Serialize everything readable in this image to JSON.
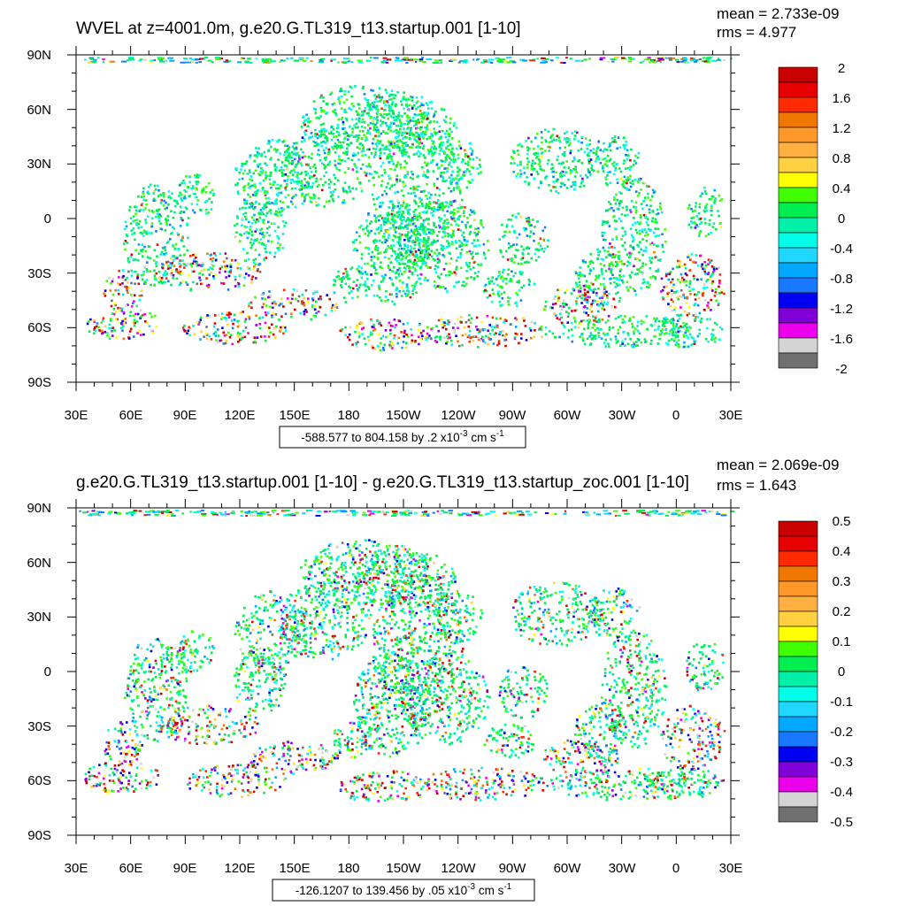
{
  "colors": [
    "#c80000",
    "#e60000",
    "#ff2a00",
    "#f07800",
    "#ff9828",
    "#ffb040",
    "#ffd040",
    "#ffff00",
    "#40ff00",
    "#00ee50",
    "#00f0a8",
    "#00ffe8",
    "#20d8ff",
    "#00a8ff",
    "#1878ff",
    "#0000f0",
    "#8000d8",
    "#ec00ec",
    "#d4d4d4",
    "#707070"
  ],
  "panels": [
    {
      "title": "WVEL at z=4001.0m, g.e20.G.TL319_t13.startup.001 [1-10]",
      "mean": "mean = 2.733e-09",
      "rms": "rms = 4.977",
      "range_text": "-588.577 to 804.158 by .2 x10",
      "range_exp": "-3",
      "range_units": " cm s",
      "range_units_exp": "-1",
      "colorbar_labels": [
        "2",
        "1.6",
        "1.2",
        "0.8",
        "0.4",
        "0",
        "-0.4",
        "-0.8",
        "-1.2",
        "-1.6",
        "-2"
      ]
    },
    {
      "title": "g.e20.G.TL319_t13.startup.001 [1-10] - g.e20.G.TL319_t13.startup_zoc.001 [1-10]",
      "mean": "mean = 2.069e-09",
      "rms": "rms = 1.643",
      "range_text": "-126.1207 to 139.456 by .05 x10",
      "range_exp": "-3",
      "range_units": " cm s",
      "range_units_exp": "-1",
      "colorbar_labels": [
        "0.5",
        "0.4",
        "0.3",
        "0.2",
        "0.1",
        "0",
        "-0.1",
        "-0.2",
        "-0.3",
        "-0.4",
        "-0.5"
      ]
    }
  ],
  "chart_data": [
    {
      "type": "heatmap",
      "title": "WVEL at z=4001.0m, g.e20.G.TL319_t13.startup.001 [1-10]",
      "x_tick_labels": [
        "30E",
        "60E",
        "90E",
        "120E",
        "150E",
        "180",
        "150W",
        "120W",
        "90W",
        "60W",
        "30W",
        "0",
        "30E"
      ],
      "y_tick_labels": [
        "90N",
        "60N",
        "30N",
        "0",
        "30S",
        "60S",
        "90S"
      ],
      "xlim": [
        30,
        390
      ],
      "ylim": [
        -90,
        90
      ],
      "colorbar_levels": [
        2,
        1.6,
        1.2,
        0.8,
        0.4,
        0,
        -0.4,
        -0.8,
        -1.2,
        -1.6,
        -2
      ],
      "mean": 2.733e-09,
      "rms": 4.977,
      "data_min": -588.577,
      "data_max": 804.158,
      "contour_interval": 0.2,
      "units": "x10^-3 cm s^-1"
    },
    {
      "type": "heatmap",
      "title": "g.e20.G.TL319_t13.startup.001 [1-10] - g.e20.G.TL319_t13.startup_zoc.001 [1-10]",
      "x_tick_labels": [
        "30E",
        "60E",
        "90E",
        "120E",
        "150E",
        "180",
        "150W",
        "120W",
        "90W",
        "60W",
        "30W",
        "0",
        "30E"
      ],
      "y_tick_labels": [
        "90N",
        "60N",
        "30N",
        "0",
        "30S",
        "60S",
        "90S"
      ],
      "xlim": [
        30,
        390
      ],
      "ylim": [
        -90,
        90
      ],
      "colorbar_levels": [
        0.5,
        0.4,
        0.3,
        0.2,
        0.1,
        0,
        -0.1,
        -0.2,
        -0.3,
        -0.4,
        -0.5
      ],
      "mean": 2.069e-09,
      "rms": 1.643,
      "data_min": -126.1207,
      "data_max": 139.456,
      "contour_interval": 0.05,
      "units": "x10^-3 cm s^-1"
    }
  ]
}
